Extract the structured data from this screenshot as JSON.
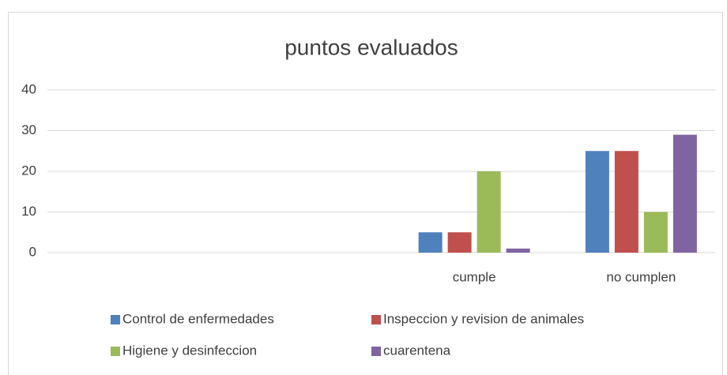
{
  "chart_data": {
    "type": "bar",
    "title": "puntos evaluados",
    "categories": [
      null,
      null,
      "cumple",
      "no cumplen"
    ],
    "series": [
      {
        "name": "Control de enfermedades",
        "color": "#4f81bd",
        "values": [
          null,
          null,
          5,
          25
        ]
      },
      {
        "name": "Inspeccion y revision de animales",
        "color": "#c0504d",
        "values": [
          null,
          null,
          5,
          25
        ]
      },
      {
        "name": "Higiene y desinfeccion",
        "color": "#9bbb59",
        "values": [
          null,
          null,
          20,
          10
        ]
      },
      {
        "name": "cuarentena",
        "color": "#8064a2",
        "values": [
          null,
          null,
          1,
          29
        ]
      }
    ],
    "ylim": [
      0,
      40
    ],
    "yticks": [
      0,
      10,
      20,
      30,
      40
    ],
    "grid": true,
    "legend": "bottom"
  }
}
